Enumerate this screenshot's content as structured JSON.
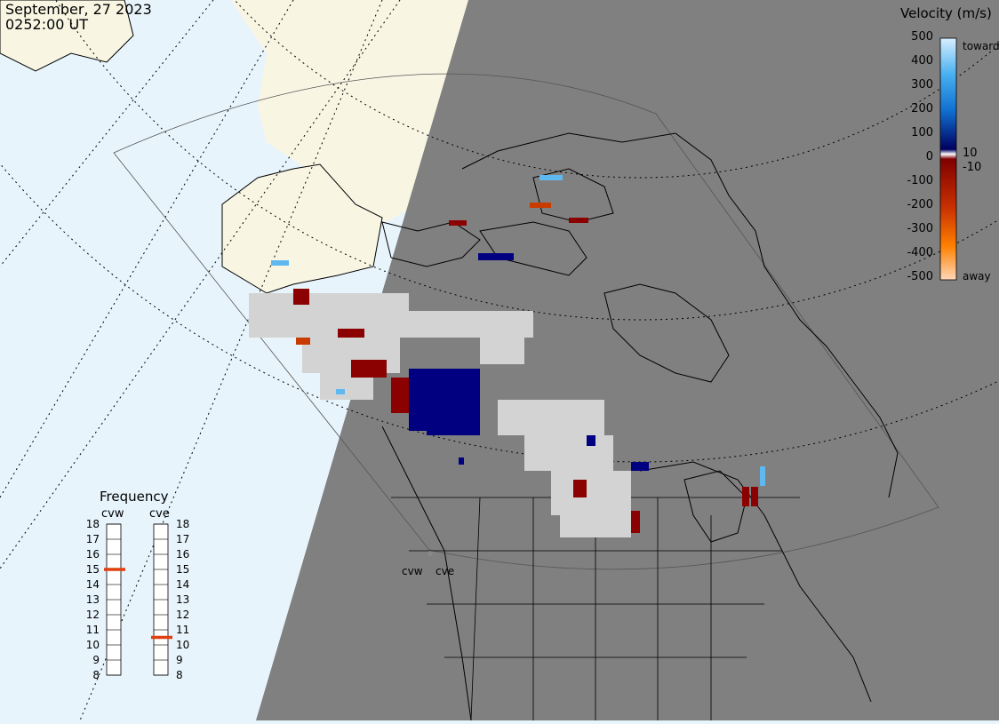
{
  "header": {
    "date": "September, 27 2023",
    "time": "0252:00 UT"
  },
  "colors": {
    "night": "#808080",
    "ocean": "#e8f4fc",
    "land_day": "#f8f6e3",
    "ground_scatter": "#d3d3d3"
  },
  "velocity_legend": {
    "title": "Velocity (m/s)",
    "ticks": [
      "500",
      "400",
      "300",
      "200",
      "100",
      "10",
      "0",
      "-10",
      "-100",
      "-200",
      "-300",
      "-400",
      "-500"
    ],
    "toward_label": "toward",
    "away_label": "away"
  },
  "frequency": {
    "title": "Frequency",
    "radars": [
      {
        "name": "cvw",
        "value": 15
      },
      {
        "name": "cve",
        "value": 10.5
      }
    ],
    "ticks": [
      "18",
      "17",
      "16",
      "15",
      "14",
      "13",
      "12",
      "11",
      "10",
      "9",
      "8"
    ]
  },
  "radar_sites": [
    {
      "name": "cvw"
    },
    {
      "name": "cve"
    }
  ]
}
